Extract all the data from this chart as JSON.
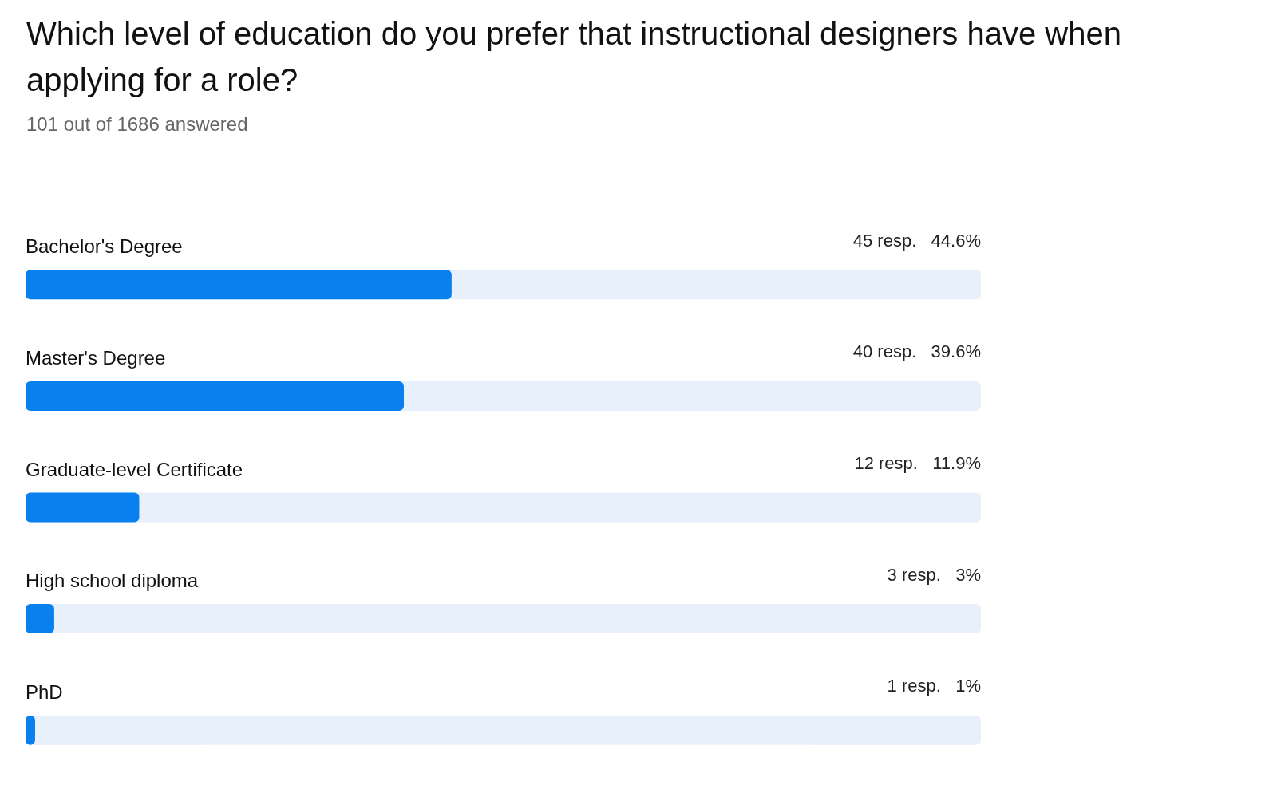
{
  "chart_data": {
    "type": "bar",
    "orientation": "horizontal",
    "title": "Which level of education do you prefer that instructional designers have when applying for a role?",
    "subtitle": "101 out of 1686 answered",
    "categories": [
      "Bachelor's Degree",
      "Master's Degree",
      "Graduate-level Certificate",
      "High school diploma",
      "PhD"
    ],
    "values": [
      44.6,
      39.6,
      11.9,
      3,
      1
    ],
    "value_labels": [
      "45 resp.   44.6%",
      "40 resp.   39.6%",
      "12 resp.   11.9%",
      "3 resp.   3%",
      "1 resp.   1%"
    ],
    "color": "#0a80ee",
    "xlim": [
      0,
      100
    ],
    "tick_labels": false
  }
}
